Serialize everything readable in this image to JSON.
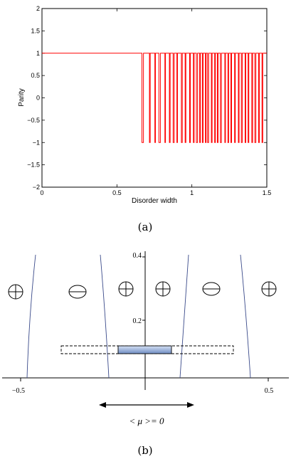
{
  "figure_a": {
    "caption": "(a)",
    "chart_data": {
      "type": "line",
      "xlabel": "Disorder width",
      "ylabel": "Parity",
      "xlim": [
        0,
        1.5
      ],
      "ylim": [
        -2,
        2
      ],
      "xticks": [
        0,
        0.5,
        1,
        1.5
      ],
      "xtick_labels": [
        "0",
        "0.5",
        "1",
        "1.5"
      ],
      "yticks": [
        -2,
        -1.5,
        -1,
        -0.5,
        0,
        0.5,
        1,
        1.5,
        2
      ],
      "ytick_labels": [
        "−2",
        "−1.5",
        "−1",
        "−0.5",
        "0",
        "0.5",
        "1",
        "1.5",
        "2"
      ],
      "grid": false,
      "series_color": "#ff0000",
      "flip_intervals": [
        [
          0.667,
          0.677
        ],
        [
          0.717,
          0.722
        ],
        [
          0.753,
          0.757
        ],
        [
          0.78,
          0.79
        ],
        [
          0.82,
          0.824
        ],
        [
          0.85,
          0.855
        ],
        [
          0.875,
          0.882
        ],
        [
          0.9,
          0.904
        ],
        [
          0.93,
          0.936
        ],
        [
          0.955,
          0.96
        ],
        [
          0.985,
          0.99
        ],
        [
          1.01,
          1.015
        ],
        [
          1.03,
          1.038
        ],
        [
          1.052,
          1.057
        ],
        [
          1.07,
          1.075
        ],
        [
          1.09,
          1.095
        ],
        [
          1.105,
          1.112
        ],
        [
          1.13,
          1.135
        ],
        [
          1.152,
          1.157
        ],
        [
          1.17,
          1.175
        ],
        [
          1.19,
          1.197
        ],
        [
          1.22,
          1.224
        ],
        [
          1.24,
          1.246
        ],
        [
          1.26,
          1.265
        ],
        [
          1.285,
          1.29
        ],
        [
          1.31,
          1.315
        ],
        [
          1.33,
          1.336
        ],
        [
          1.355,
          1.36
        ],
        [
          1.375,
          1.38
        ],
        [
          1.4,
          1.405
        ],
        [
          1.42,
          1.427
        ],
        [
          1.445,
          1.45
        ],
        [
          1.468,
          1.473
        ]
      ]
    }
  },
  "figure_b": {
    "caption": "(b)",
    "axis": {
      "xlim": [
        -0.5,
        0.5
      ],
      "xticks": [
        -0.5,
        0.5
      ],
      "xtick_labels": [
        "−0.5",
        "0.5"
      ],
      "yticks": [
        0.2,
        0.4
      ],
      "ytick_labels": [
        "0.2",
        "0.4"
      ]
    },
    "parity_signs": [
      "⊕",
      "⊖",
      "⊕",
      "⊕",
      "⊖",
      "⊕"
    ],
    "mean_label": "< μ >= 0",
    "colors": {
      "bar_top": "#cfdcf2",
      "bar_bottom": "#7a96c8",
      "curve": "#3a4a8a"
    }
  }
}
